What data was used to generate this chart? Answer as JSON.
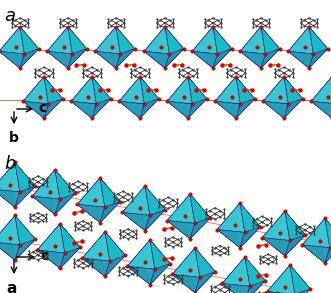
{
  "panel_a_label": "a",
  "panel_b_label": "b",
  "panel_a_axis_x": "b",
  "panel_a_axis_y": "c",
  "panel_b_axis_x": "a",
  "panel_b_axis_y": "c",
  "bg_color": "#ffffff",
  "blue_outer": "#1040e8",
  "blue_mid": "#0030d0",
  "cyan_inner": "#40d8d0",
  "cyan_face": "#20c8c0",
  "blue_edge": "#001880",
  "red_dot": "#e00000",
  "dark_stick": "#202020",
  "gray_dot": "#505050",
  "brown_line": "#8B5020",
  "label_fontsize": 13,
  "axis_fontsize": 10,
  "fig_width": 3.31,
  "fig_height": 2.93,
  "dpi": 100
}
